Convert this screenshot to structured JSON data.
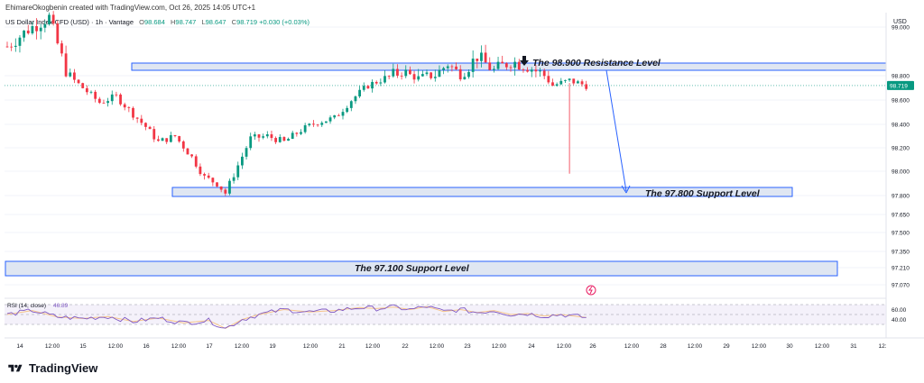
{
  "header": {
    "credit": "EhimareOkogbenin created with TradingView.com, Oct 26, 2025 14:05 UTC+1"
  },
  "legend": {
    "symbol": "US Dollar Index CFD (USD) · 1h · Vantage",
    "open_label": "O",
    "open": "98.684",
    "high_label": "H",
    "high": "98.747",
    "low_label": "L",
    "low": "98.647",
    "close_label": "C",
    "close": "98.719",
    "change": "+0.030 (+0.03%)"
  },
  "price_axis": {
    "currency": "USD",
    "last_price": "98.719"
  },
  "annotations": {
    "resistance": "The 98.900 Resistance Level",
    "support1": "The 97.800 Support Level",
    "support2": "The 97.100 Support Level"
  },
  "rsi": {
    "label": "RSI (14, close)",
    "value": "46.89",
    "ticks": [
      "60.00",
      "40.00"
    ]
  },
  "footer": {
    "brand": "TradingView"
  },
  "colors": {
    "up": "#089981",
    "down": "#f23645",
    "zone_stroke": "#2962ff",
    "zone_fill": "#dfe6f2",
    "rsi_line": "#7e57c2",
    "rsi_ma": "#f7c58a",
    "price_label_bg": "#089981"
  },
  "chart_data": {
    "type": "candlestick",
    "y_ticks": [
      "99.000",
      "98.800",
      "98.600",
      "98.400",
      "98.200",
      "98.000",
      "97.800",
      "97.650",
      "97.500",
      "97.350",
      "97.210",
      "97.070"
    ],
    "x_ticks": [
      "14",
      "12:00",
      "15",
      "12:00",
      "16",
      "12:00",
      "17",
      "12:00",
      "19",
      "12:00",
      "21",
      "12:00",
      "22",
      "12:00",
      "23",
      "12:00",
      "24",
      "12:00",
      "26",
      "12:00",
      "28",
      "12:00",
      "29",
      "12:00",
      "30",
      "12:00",
      "31",
      "12:"
    ],
    "zones": [
      {
        "label": "The 98.900 Resistance Level",
        "level": 98.9
      },
      {
        "label": "The 97.800 Support Level",
        "level": 97.8
      },
      {
        "label": "The 97.100 Support Level",
        "level": 97.1
      }
    ],
    "price_path": [
      [
        0,
        98.92
      ],
      [
        5,
        98.99
      ],
      [
        10,
        99.04
      ],
      [
        14,
        98.82
      ],
      [
        18,
        98.7
      ],
      [
        22,
        98.58
      ],
      [
        26,
        98.63
      ],
      [
        29,
        98.52
      ],
      [
        33,
        98.38
      ],
      [
        36,
        98.25
      ],
      [
        40,
        98.3
      ],
      [
        44,
        98.12
      ],
      [
        47,
        97.95
      ],
      [
        50,
        97.9
      ],
      [
        52,
        97.82
      ],
      [
        55,
        98.05
      ],
      [
        58,
        98.28
      ],
      [
        62,
        98.3
      ],
      [
        66,
        98.25
      ],
      [
        70,
        98.35
      ],
      [
        74,
        98.42
      ],
      [
        78,
        98.45
      ],
      [
        82,
        98.6
      ],
      [
        86,
        98.72
      ],
      [
        90,
        98.78
      ],
      [
        94,
        98.82
      ],
      [
        98,
        98.78
      ],
      [
        102,
        98.8
      ],
      [
        105,
        98.85
      ],
      [
        108,
        98.8
      ],
      [
        112,
        98.88
      ],
      [
        116,
        98.82
      ],
      [
        120,
        98.86
      ],
      [
        124,
        98.84
      ],
      [
        128,
        98.8
      ],
      [
        130,
        98.72
      ],
      [
        134,
        98.76
      ],
      [
        138,
        98.72
      ]
    ],
    "rsi_path": [
      [
        0,
        50
      ],
      [
        6,
        58
      ],
      [
        12,
        45
      ],
      [
        18,
        42
      ],
      [
        24,
        46
      ],
      [
        30,
        36
      ],
      [
        36,
        43
      ],
      [
        42,
        33
      ],
      [
        48,
        38
      ],
      [
        52,
        22
      ],
      [
        56,
        40
      ],
      [
        60,
        50
      ],
      [
        66,
        60
      ],
      [
        72,
        55
      ],
      [
        78,
        58
      ],
      [
        84,
        64
      ],
      [
        88,
        62
      ],
      [
        92,
        65
      ],
      [
        96,
        60
      ],
      [
        100,
        66
      ],
      [
        104,
        56
      ],
      [
        108,
        60
      ],
      [
        112,
        54
      ],
      [
        116,
        58
      ],
      [
        120,
        50
      ],
      [
        124,
        52
      ],
      [
        128,
        47
      ],
      [
        132,
        50
      ],
      [
        138,
        44
      ]
    ],
    "last_price": 98.719
  }
}
